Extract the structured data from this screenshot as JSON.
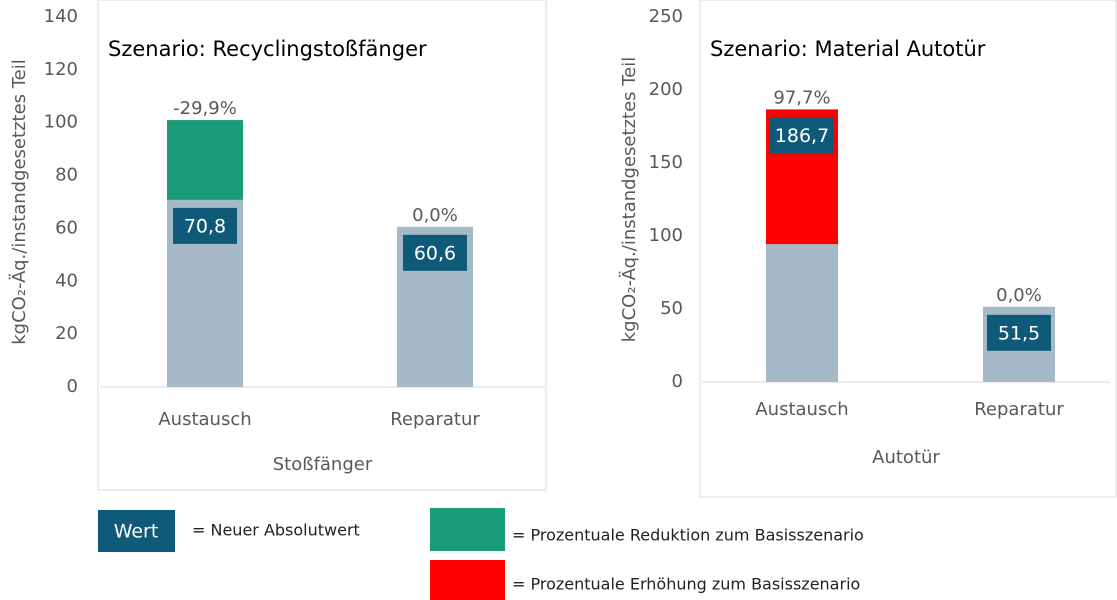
{
  "chart_data": [
    {
      "type": "bar",
      "stacked": true,
      "title": "Szenario: Recyclingstoßfänger",
      "x_label": "Stoßfänger",
      "y_label": "kgCO₂-Äq./instandgesetztes Teil",
      "categories": [
        "Austausch",
        "Reparatur"
      ],
      "series": [
        {
          "color": "#a5bac6",
          "values": [
            70.8,
            60.6
          ]
        },
        {
          "color": "#1b9c78",
          "values": [
            30.2,
            0
          ]
        }
      ],
      "new_values": [
        70.8,
        60.6
      ],
      "new_value_labels": [
        "70,8",
        "60,6"
      ],
      "change_values": [
        -29.9,
        0.0
      ],
      "change_labels": [
        "-29,9%",
        "0,0%"
      ],
      "ylim": [
        0,
        140
      ],
      "yticks": [
        0,
        20,
        40,
        60,
        80,
        100,
        120,
        140
      ],
      "box_color": "#0f5a78"
    },
    {
      "type": "bar",
      "stacked": true,
      "title": "Szenario: Material Autotür",
      "x_label": "Autotür",
      "y_label": "kgCO₂-Äq./instandgesetztes Teil",
      "categories": [
        "Austausch",
        "Reparatur"
      ],
      "series": [
        {
          "color": "#a5bac6",
          "values": [
            94.4,
            51.5
          ]
        },
        {
          "color": "#ff0000",
          "values": [
            92.3,
            0
          ]
        }
      ],
      "new_values": [
        186.7,
        51.5
      ],
      "new_value_labels": [
        "186,7",
        "51,5"
      ],
      "change_values": [
        97.7,
        0.0
      ],
      "change_labels": [
        "97,7%",
        "0,0%"
      ],
      "ylim": [
        0,
        250
      ],
      "yticks": [
        0,
        50,
        100,
        150,
        200,
        250
      ],
      "box_color": "#0f5a78"
    }
  ],
  "legend": {
    "box_text": "Wert",
    "box_color": "#0f5a78",
    "items": [
      "= Neuer Absolutwert",
      "= Prozentuale Reduktion zum Basisszenario",
      "= Prozentuale Erhöhung zum Basisszenario"
    ],
    "colors": [
      "#1b9c78",
      "#ff0000"
    ]
  }
}
